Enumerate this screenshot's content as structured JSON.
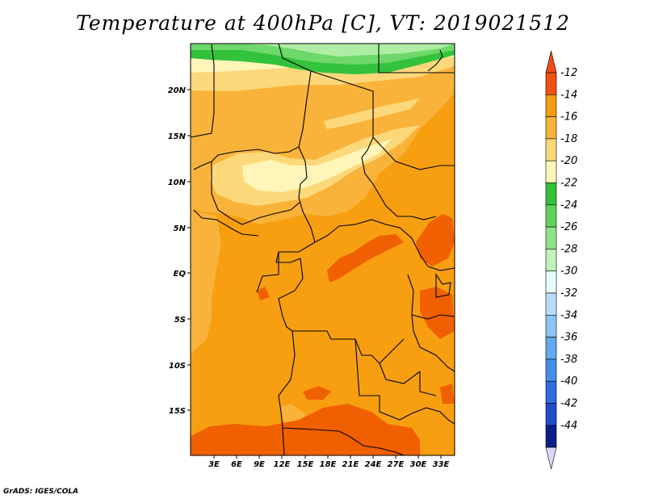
{
  "title": "Temperature at 400hPa [C], VT: 2019021512",
  "credit": "GrADS: IGES/COLA",
  "map": {
    "lat_labels": [
      "20N",
      "15N",
      "10N",
      "5N",
      "EQ",
      "5S",
      "10S",
      "15S"
    ],
    "lon_labels": [
      "3E",
      "6E",
      "9E",
      "12E",
      "15E",
      "18E",
      "21E",
      "24E",
      "27E",
      "30E",
      "33E"
    ],
    "colors": {
      "c12": "#f06000",
      "c14": "#f79f11",
      "c16": "#f9b33a",
      "c18": "#fcd87a",
      "c20": "#fff5b8",
      "c24": "#33c23c",
      "c26": "#6ed86a",
      "c28": "#aeeea4"
    }
  },
  "colorbar": {
    "labels": [
      "-12",
      "-14",
      "-16",
      "-18",
      "-20",
      "-22",
      "-24",
      "-26",
      "-28",
      "-30",
      "-32",
      "-34",
      "-36",
      "-38",
      "-40",
      "-42",
      "-44"
    ],
    "colors": [
      "#f05010",
      "#f79b10",
      "#f9b33a",
      "#fcd87a",
      "#fff5b8",
      "#33c23c",
      "#5dd45a",
      "#8fe288",
      "#bff3b8",
      "#e6f9fb",
      "#b6dcf8",
      "#8cc4f3",
      "#63a9ee",
      "#428ee8",
      "#2f6cdc",
      "#1f4cc9",
      "#0d1e8a"
    ],
    "over_color": "#f04a18",
    "under_color": "#ded6f8"
  }
}
